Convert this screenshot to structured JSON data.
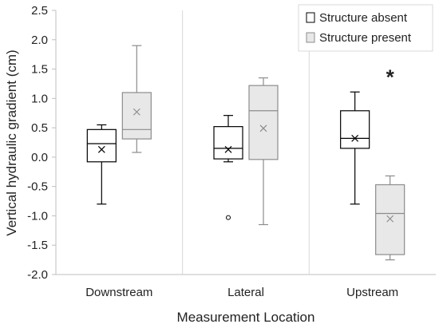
{
  "chart_data": {
    "type": "box",
    "xlabel": "Measurement Location",
    "ylabel": "Vertical hydraulic gradient (cm)",
    "ylim": [
      -2.0,
      2.5
    ],
    "yticks": [
      "2.5",
      "2.0",
      "1.5",
      "1.0",
      "0.5",
      "0.0",
      "-0.5",
      "-1.0",
      "-1.5",
      "-2.0"
    ],
    "grid": "vertical separators",
    "categories": [
      "Downstream",
      "Lateral",
      "Upstream"
    ],
    "legend_position": "top-right",
    "series": [
      {
        "name": "Structure absent",
        "color": "#ffffff",
        "stroke": "#000000",
        "boxes": [
          {
            "whisker_low": -0.8,
            "q1": -0.08,
            "median": 0.23,
            "q3": 0.47,
            "whisker_high": 0.55,
            "mean": 0.13,
            "outliers": []
          },
          {
            "whisker_low": -0.08,
            "q1": -0.03,
            "median": 0.15,
            "q3": 0.52,
            "whisker_high": 0.71,
            "mean": 0.13,
            "outliers": [
              -1.03
            ]
          },
          {
            "whisker_low": -0.8,
            "q1": 0.15,
            "median": 0.32,
            "q3": 0.79,
            "whisker_high": 1.11,
            "mean": 0.32,
            "outliers": []
          }
        ]
      },
      {
        "name": "Structure present",
        "color": "#e8e8e8",
        "stroke": "#8c8c8c",
        "boxes": [
          {
            "whisker_low": 0.08,
            "q1": 0.31,
            "median": 0.47,
            "q3": 1.1,
            "whisker_high": 1.9,
            "mean": 0.77,
            "outliers": []
          },
          {
            "whisker_low": -1.15,
            "q1": -0.04,
            "median": 0.79,
            "q3": 1.22,
            "whisker_high": 1.35,
            "mean": 0.49,
            "outliers": []
          },
          {
            "whisker_low": -1.75,
            "q1": -1.66,
            "median": -0.96,
            "q3": -0.47,
            "whisker_high": -0.32,
            "mean": -1.05,
            "outliers": []
          }
        ]
      }
    ],
    "annotations": [
      {
        "text": "*",
        "category": "Upstream",
        "y": 1.38
      }
    ]
  }
}
